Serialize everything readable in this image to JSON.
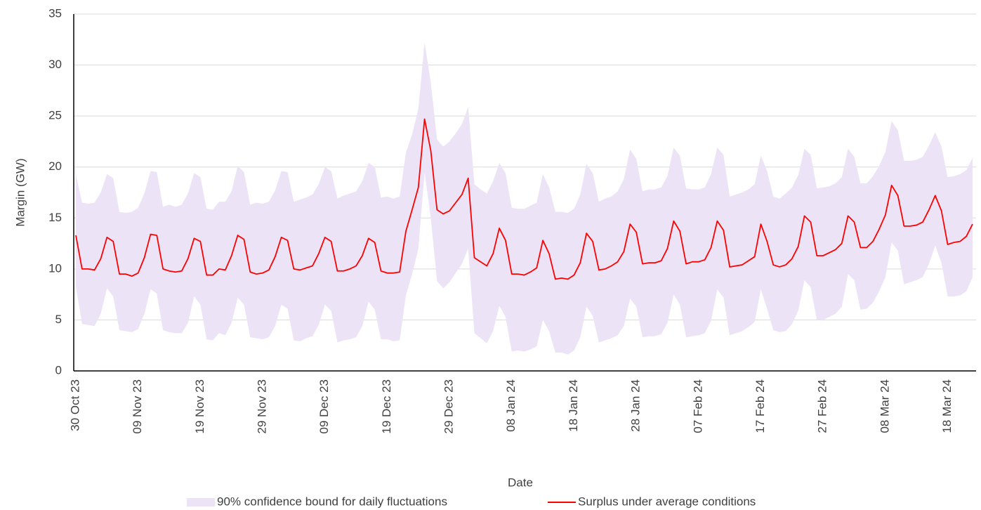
{
  "chart_data": {
    "type": "line",
    "xlabel": "Date",
    "ylabel": "Margin (GW)",
    "ylim": [
      0,
      35
    ],
    "yticks": [
      0,
      5,
      10,
      15,
      20,
      25,
      30,
      35
    ],
    "grid": true,
    "categories": [
      "30 Oct 23",
      null,
      null,
      null,
      null,
      null,
      null,
      null,
      null,
      null,
      "09 Nov 23",
      null,
      null,
      null,
      null,
      null,
      null,
      null,
      null,
      null,
      "19 Nov 23",
      null,
      null,
      null,
      null,
      null,
      null,
      null,
      null,
      null,
      "29 Nov 23",
      null,
      null,
      null,
      null,
      null,
      null,
      null,
      null,
      null,
      "09 Dec 23",
      null,
      null,
      null,
      null,
      null,
      null,
      null,
      null,
      null,
      "19 Dec 23",
      null,
      null,
      null,
      null,
      null,
      null,
      null,
      null,
      null,
      "29 Dec 23",
      null,
      null,
      null,
      null,
      null,
      null,
      null,
      null,
      null,
      "08 Jan 24",
      null,
      null,
      null,
      null,
      null,
      null,
      null,
      null,
      null,
      "18 Jan 24",
      null,
      null,
      null,
      null,
      null,
      null,
      null,
      null,
      null,
      "28 Jan 24",
      null,
      null,
      null,
      null,
      null,
      null,
      null,
      null,
      null,
      "07 Feb 24",
      null,
      null,
      null,
      null,
      null,
      null,
      null,
      null,
      null,
      "17 Feb 24",
      null,
      null,
      null,
      null,
      null,
      null,
      null,
      null,
      null,
      "27 Feb 24",
      null,
      null,
      null,
      null,
      null,
      null,
      null,
      null,
      null,
      "08 Mar 24",
      null,
      null,
      null,
      null,
      null,
      null,
      null,
      null,
      null,
      "18 Mar 24",
      null,
      null,
      null,
      null
    ],
    "series": [
      {
        "name": "90% confidence bound for daily fluctuations",
        "type": "band",
        "color": "#ece3f6",
        "upper": [
          19.3,
          16.5,
          16.4,
          16.5,
          17.5,
          19.3,
          18.9,
          15.6,
          15.5,
          15.6,
          16.0,
          17.4,
          19.6,
          19.5,
          16.1,
          16.3,
          16.1,
          16.3,
          17.4,
          19.4,
          19.0,
          15.9,
          15.8,
          16.6,
          16.6,
          17.6,
          20.1,
          19.5,
          16.3,
          16.5,
          16.4,
          16.6,
          17.7,
          19.6,
          19.5,
          16.6,
          16.8,
          17.0,
          17.3,
          18.3,
          20.0,
          19.6,
          16.9,
          17.2,
          17.4,
          17.6,
          18.6,
          20.4,
          20.0,
          17.0,
          17.1,
          16.9,
          17.1,
          21.4,
          23.2,
          25.7,
          32.2,
          28.3,
          22.7,
          22.0,
          22.5,
          23.3,
          24.2,
          25.9,
          18.3,
          17.8,
          17.4,
          18.6,
          20.4,
          19.4,
          16.0,
          15.9,
          15.9,
          16.2,
          16.5,
          19.3,
          18.0,
          15.6,
          15.6,
          15.5,
          15.9,
          17.3,
          20.3,
          19.4,
          16.6,
          16.9,
          17.1,
          17.6,
          18.8,
          21.7,
          20.8,
          17.6,
          17.8,
          17.8,
          18.0,
          19.1,
          21.9,
          21.1,
          17.9,
          17.8,
          17.8,
          18.0,
          19.3,
          21.9,
          21.2,
          17.1,
          17.3,
          17.5,
          17.8,
          18.3,
          21.1,
          19.6,
          17.1,
          16.9,
          17.4,
          18.0,
          19.2,
          21.8,
          21.2,
          17.9,
          18.0,
          18.1,
          18.4,
          19.0,
          21.8,
          21.0,
          18.4,
          18.4,
          19.1,
          20.1,
          21.5,
          24.5,
          23.6,
          20.6,
          20.6,
          20.7,
          21.0,
          22.1,
          23.4,
          22.0,
          19.0,
          19.1,
          19.3,
          19.7,
          20.9
        ],
        "lower": [
          8.3,
          4.6,
          4.5,
          4.4,
          5.6,
          8.1,
          7.3,
          4.0,
          3.9,
          3.8,
          4.1,
          5.6,
          8.0,
          7.6,
          4.0,
          3.8,
          3.7,
          3.7,
          4.7,
          7.3,
          6.5,
          3.1,
          3.0,
          3.7,
          3.5,
          4.7,
          7.2,
          6.5,
          3.3,
          3.2,
          3.1,
          3.3,
          4.4,
          6.5,
          6.1,
          3.0,
          2.9,
          3.2,
          3.4,
          4.5,
          6.5,
          5.9,
          2.8,
          3.0,
          3.1,
          3.3,
          4.4,
          6.8,
          6.0,
          3.1,
          3.1,
          2.9,
          3.0,
          7.4,
          9.5,
          12.0,
          19.5,
          15.0,
          8.8,
          8.1,
          8.7,
          9.6,
          10.5,
          12.0,
          3.7,
          3.2,
          2.7,
          3.9,
          6.4,
          5.3,
          1.9,
          2.0,
          1.9,
          2.1,
          2.4,
          5.0,
          3.9,
          1.8,
          1.8,
          1.6,
          2.0,
          3.3,
          6.3,
          5.4,
          2.8,
          3.0,
          3.2,
          3.5,
          4.4,
          7.1,
          6.3,
          3.3,
          3.4,
          3.4,
          3.6,
          4.7,
          7.5,
          6.5,
          3.3,
          3.4,
          3.5,
          3.7,
          4.9,
          8.0,
          7.2,
          3.5,
          3.7,
          3.9,
          4.3,
          4.8,
          8.0,
          6.1,
          4.0,
          3.8,
          3.9,
          4.6,
          5.9,
          8.9,
          8.2,
          5.0,
          5.0,
          5.3,
          5.6,
          6.3,
          9.5,
          8.9,
          6.0,
          6.1,
          6.7,
          7.8,
          9.2,
          12.6,
          11.8,
          8.5,
          8.7,
          8.9,
          9.2,
          10.5,
          12.3,
          10.6,
          7.3,
          7.3,
          7.4,
          7.8,
          9.2
        ]
      },
      {
        "name": "Surplus under average conditions",
        "type": "line",
        "color": "#ff0000",
        "values": [
          13.3,
          10.0,
          10.0,
          9.9,
          11.0,
          13.1,
          12.7,
          9.5,
          9.5,
          9.3,
          9.6,
          11.1,
          13.4,
          13.3,
          10.0,
          9.8,
          9.7,
          9.8,
          11.0,
          13.0,
          12.7,
          9.4,
          9.4,
          10.0,
          9.9,
          11.3,
          13.3,
          12.9,
          9.7,
          9.5,
          9.6,
          9.9,
          11.2,
          13.1,
          12.8,
          10.0,
          9.9,
          10.1,
          10.3,
          11.5,
          13.1,
          12.7,
          9.8,
          9.8,
          10.0,
          10.3,
          11.3,
          13.0,
          12.6,
          9.8,
          9.6,
          9.6,
          9.7,
          13.7,
          15.8,
          18.0,
          24.7,
          21.6,
          15.8,
          15.4,
          15.7,
          16.5,
          17.3,
          18.9,
          11.1,
          10.7,
          10.3,
          11.5,
          14.0,
          12.8,
          9.5,
          9.5,
          9.4,
          9.7,
          10.1,
          12.8,
          11.5,
          9.0,
          9.1,
          9.0,
          9.4,
          10.6,
          13.5,
          12.7,
          9.9,
          10.0,
          10.3,
          10.7,
          11.7,
          14.4,
          13.6,
          10.5,
          10.6,
          10.6,
          10.8,
          12.0,
          14.7,
          13.7,
          10.5,
          10.7,
          10.7,
          10.9,
          12.1,
          14.7,
          13.8,
          10.2,
          10.3,
          10.4,
          10.8,
          11.2,
          14.4,
          12.7,
          10.4,
          10.2,
          10.4,
          11.0,
          12.2,
          15.2,
          14.6,
          11.3,
          11.3,
          11.6,
          11.9,
          12.5,
          15.2,
          14.6,
          12.1,
          12.1,
          12.7,
          13.9,
          15.3,
          18.2,
          17.2,
          14.2,
          14.2,
          14.3,
          14.6,
          15.8,
          17.2,
          15.7,
          12.4,
          12.6,
          12.7,
          13.2,
          14.4
        ]
      }
    ]
  }
}
